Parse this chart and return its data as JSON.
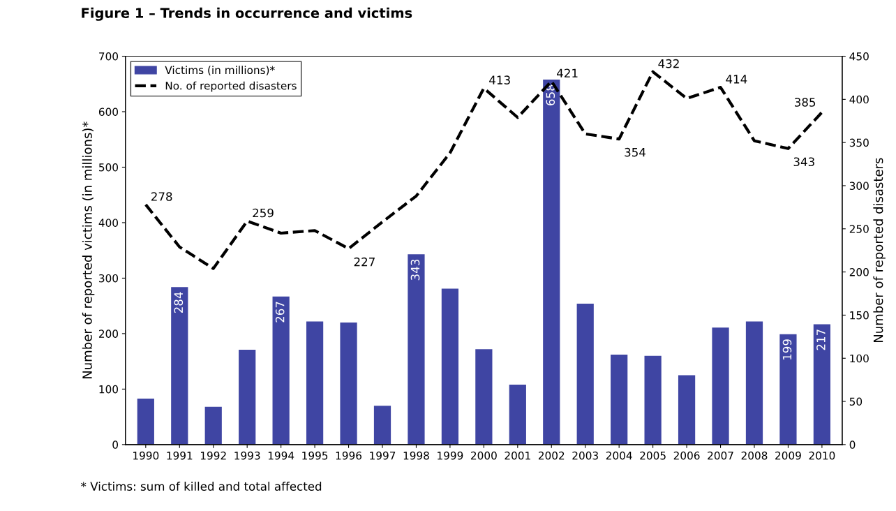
{
  "chart_data": {
    "type": "bar",
    "title": "Figure 1 – Trends in occurrence and victims",
    "categories": [
      "1990",
      "1991",
      "1992",
      "1993",
      "1994",
      "1995",
      "1996",
      "1997",
      "1998",
      "1999",
      "2000",
      "2001",
      "2002",
      "2003",
      "2004",
      "2005",
      "2006",
      "2007",
      "2008",
      "2009",
      "2010"
    ],
    "series": [
      {
        "name": "Victims (in millions)*",
        "color": "#3f45a3",
        "values": [
          83,
          284,
          68,
          171,
          267,
          222,
          220,
          70,
          343,
          281,
          172,
          108,
          658,
          254,
          162,
          160,
          125,
          211,
          222,
          199,
          217
        ],
        "value_labels": [
          null,
          "284",
          null,
          null,
          "267",
          null,
          null,
          null,
          "343",
          null,
          null,
          null,
          "658",
          null,
          null,
          null,
          null,
          null,
          null,
          "199",
          "217"
        ]
      },
      {
        "name": "No. of reported disasters",
        "type": "line",
        "axis": "y2",
        "color": "#000000",
        "line_style": "dashed",
        "values": [
          278,
          229,
          204,
          259,
          245,
          248,
          227,
          258,
          288,
          338,
          413,
          379,
          421,
          360,
          354,
          432,
          401,
          414,
          352,
          343,
          385
        ],
        "value_labels": [
          "278",
          null,
          null,
          "259",
          null,
          null,
          "227",
          null,
          null,
          null,
          "413",
          null,
          "421",
          null,
          "354",
          "432",
          null,
          "414",
          null,
          "343",
          "385"
        ]
      }
    ],
    "ylabel": "Number of reported victims (in millions)*",
    "y2label": "Number of reported disasters",
    "ylim": [
      0,
      700
    ],
    "yticks": [
      0,
      100,
      200,
      300,
      400,
      500,
      600,
      700
    ],
    "y2lim": [
      0,
      450
    ],
    "y2ticks": [
      0,
      50,
      100,
      150,
      200,
      250,
      300,
      350,
      400,
      450
    ],
    "legend": "top left",
    "grid": false,
    "marker": "none",
    "annotations": [
      "* Victims: sum of killed and total affected"
    ]
  }
}
